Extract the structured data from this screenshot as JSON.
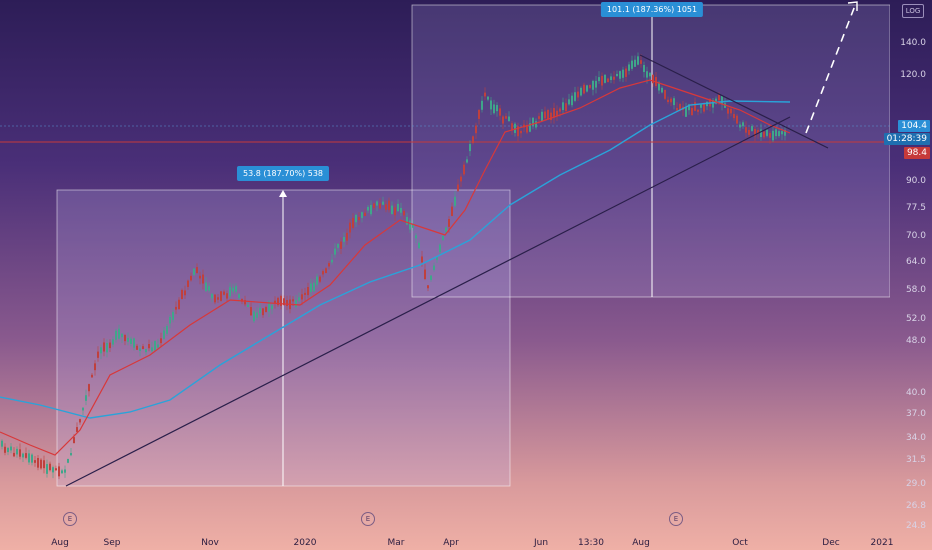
{
  "toolbar": {
    "log_label": "LOG"
  },
  "measure_labels": [
    {
      "text": "53.8 (187.70%) 538"
    },
    {
      "text": "101.1 (187.36%) 1051"
    }
  ],
  "price_axis": {
    "ticks": [
      "140.0",
      "120.0",
      "104.4",
      "90.0",
      "77.5",
      "70.0",
      "64.0",
      "58.0",
      "52.0",
      "48.0",
      "40.0",
      "37.0",
      "34.0",
      "31.5",
      "29.0",
      "26.8",
      "24.8"
    ],
    "current_price": "104.4",
    "countdown": "01:28:39",
    "red_line_price": "98.4"
  },
  "time_axis": {
    "ticks": [
      "Aug",
      "Sep",
      "Nov",
      "2020",
      "Mar",
      "Apr",
      "Jun",
      "13:30",
      "Aug",
      "Oct",
      "Dec",
      "2021"
    ]
  },
  "earnings_markers": [
    "E",
    "E",
    "E"
  ],
  "colors": {
    "sma_slow": "#2aa3d9",
    "sma_fast": "#d8383a",
    "trendline": "#2a1f4a",
    "up": "#3fa68a",
    "down": "#c0403d",
    "price_line": "#c63a3a",
    "current_price_bg": "#2a8fd6"
  }
}
